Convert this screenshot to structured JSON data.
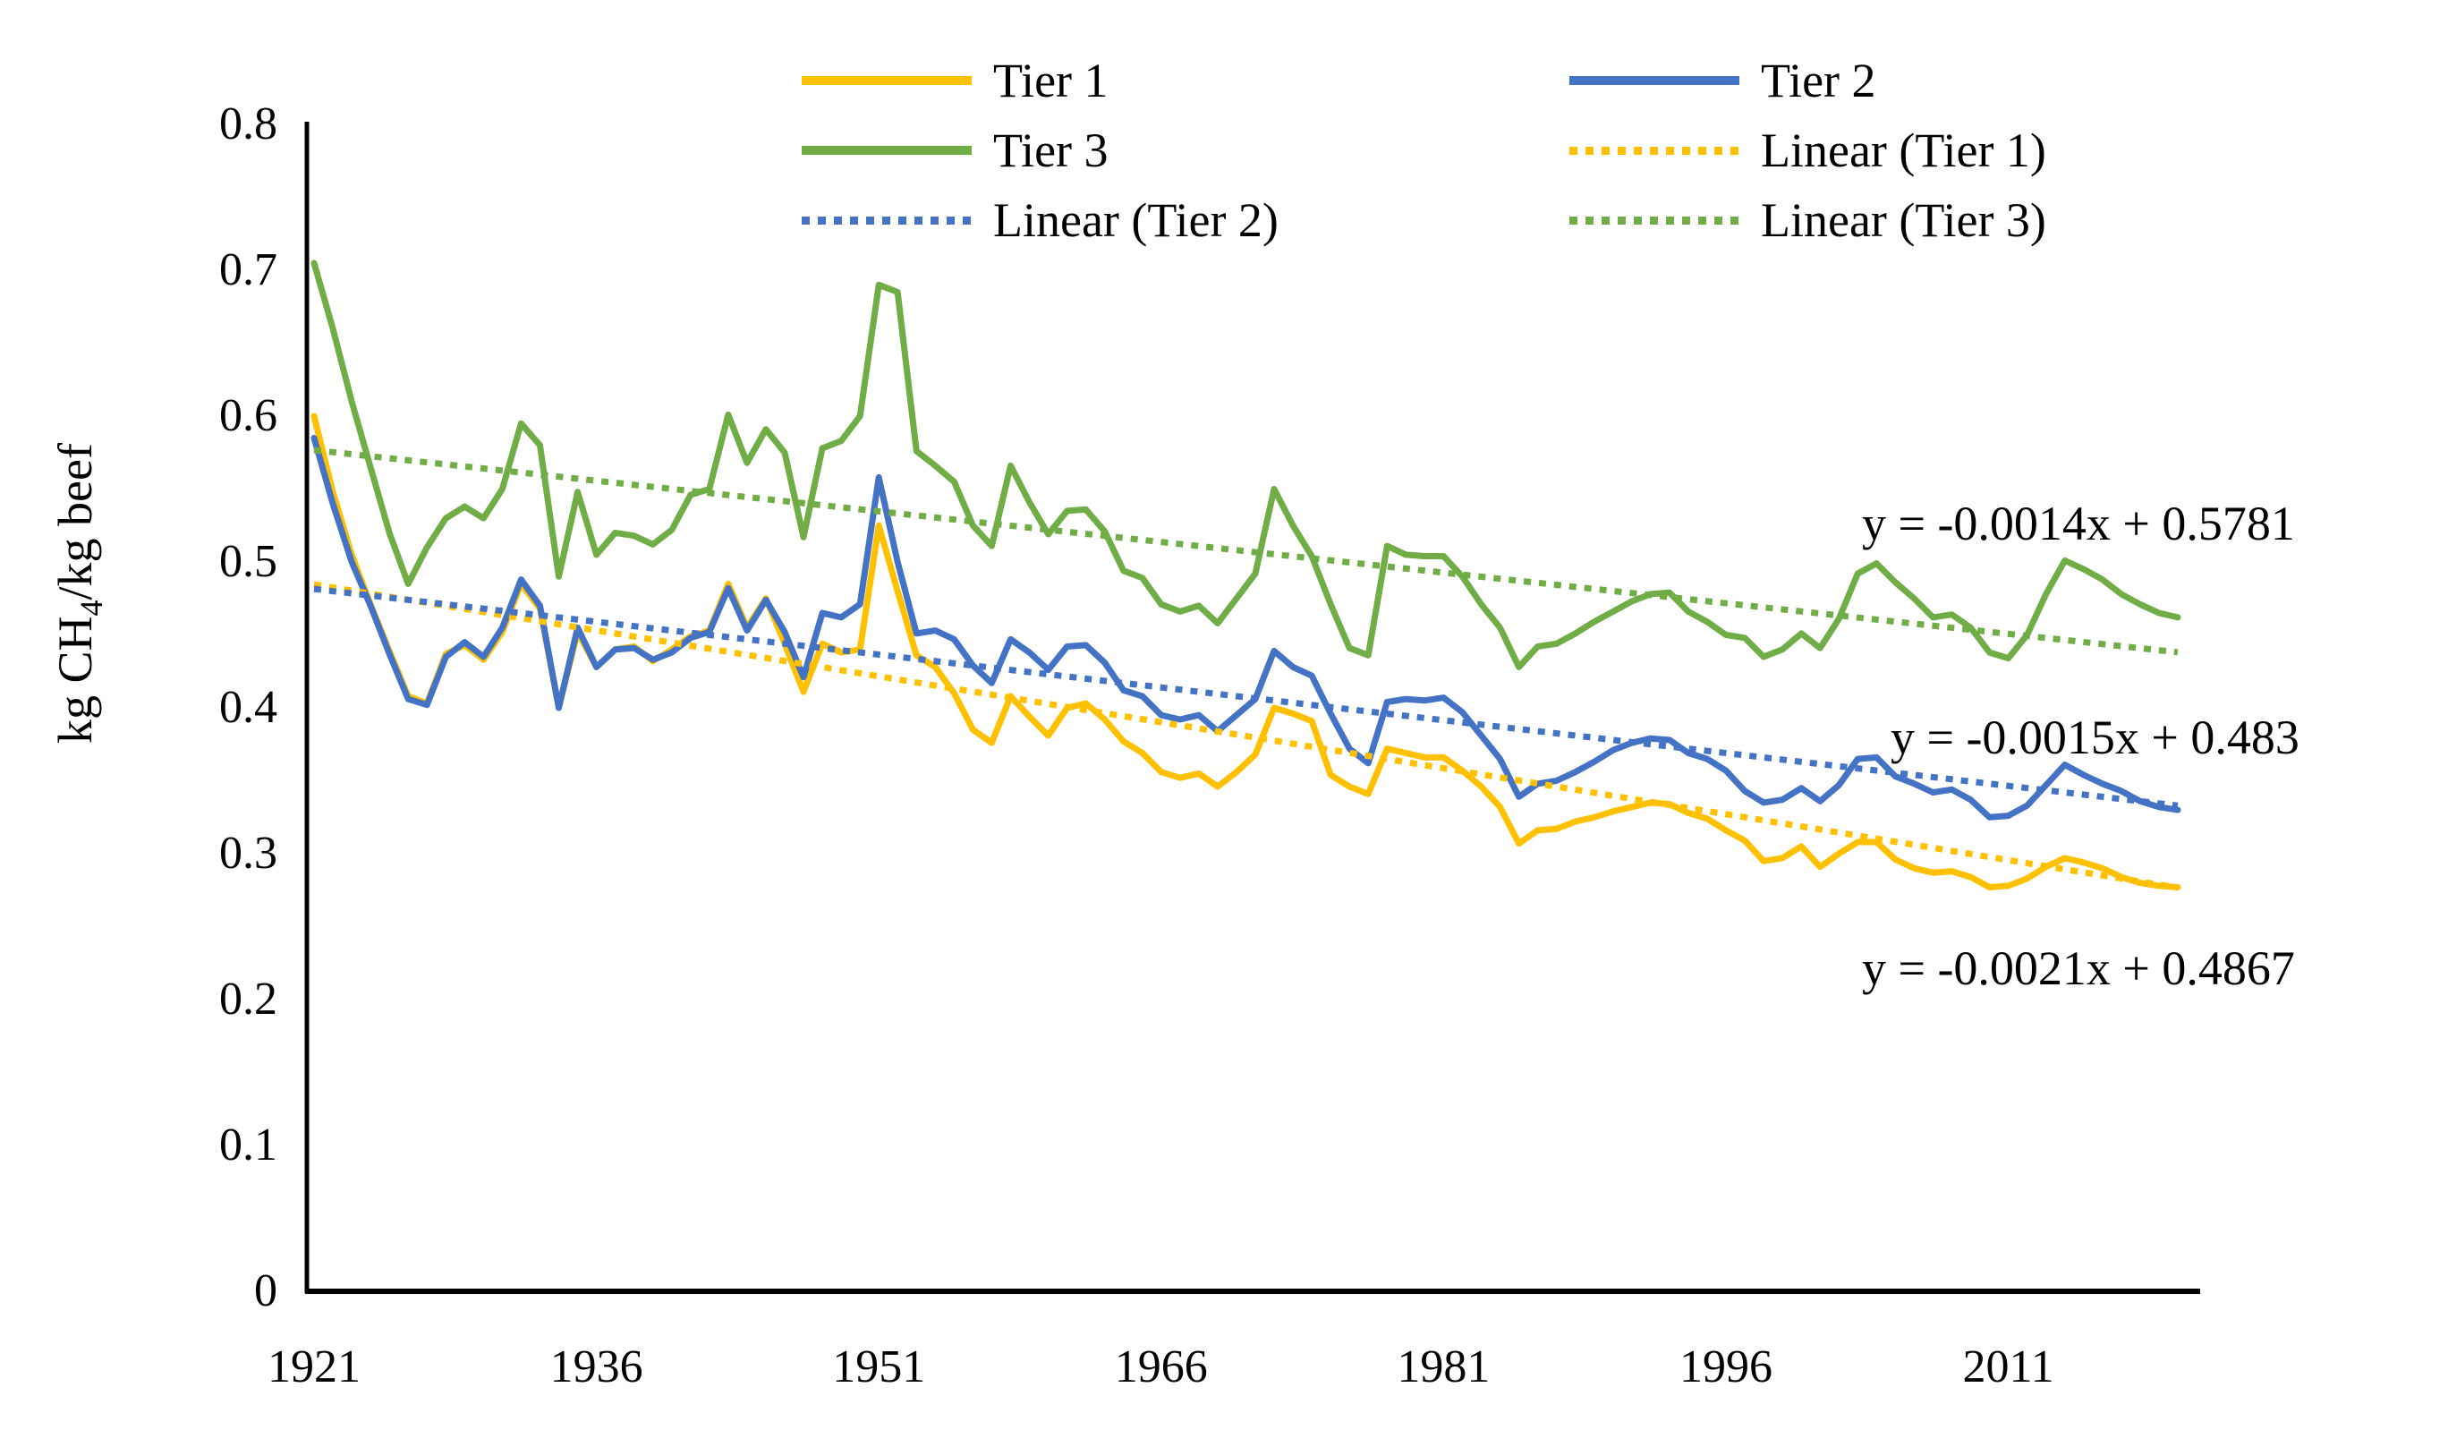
{
  "figure": {
    "ylabel_prefix": "kg CH",
    "ylabel_sub": "4",
    "ylabel_suffix": "/kg beef"
  },
  "legend": [
    {
      "label": "Tier 1",
      "color": "#FFC000",
      "style": "solid"
    },
    {
      "label": "Tier 2",
      "color": "#4472C4",
      "style": "solid"
    },
    {
      "label": "Tier 3",
      "color": "#70AD47",
      "style": "solid"
    },
    {
      "label": "Linear (Tier 1)",
      "color": "#FFC000",
      "style": "dotted"
    },
    {
      "label": "Linear (Tier 2)",
      "color": "#4472C4",
      "style": "dotted"
    },
    {
      "label": "Linear (Tier 3)",
      "color": "#70AD47",
      "style": "dotted"
    }
  ],
  "equations": [
    {
      "text": "y = -0.0014x + 0.5781",
      "series": "Tier 3"
    },
    {
      "text": "y = -0.0015x + 0.483",
      "series": "Tier 2"
    },
    {
      "text": "y = -0.0021x + 0.4867",
      "series": "Tier 1"
    }
  ],
  "chart_data": {
    "type": "line",
    "title": "",
    "xlabel": "",
    "ylabel": "kg CH4/kg beef",
    "ylim": [
      0,
      0.8
    ],
    "x_range": [
      1921,
      2020
    ],
    "grid": false,
    "legend_position": "top",
    "yticks": [
      0,
      0.1,
      0.2,
      0.3,
      0.4,
      0.5,
      0.6,
      0.7,
      0.8
    ],
    "ytick_labels": [
      "0",
      "0.1",
      "0.2",
      "0.3",
      "0.4",
      "0.5",
      "0.6",
      "0.7",
      "0.8"
    ],
    "xticks": [
      1921,
      1936,
      1951,
      1966,
      1981,
      1996,
      2011
    ],
    "x": [
      1921,
      1922,
      1923,
      1924,
      1925,
      1926,
      1927,
      1928,
      1929,
      1930,
      1931,
      1932,
      1933,
      1934,
      1935,
      1936,
      1937,
      1938,
      1939,
      1940,
      1941,
      1942,
      1943,
      1944,
      1945,
      1946,
      1947,
      1948,
      1949,
      1950,
      1951,
      1952,
      1953,
      1954,
      1955,
      1956,
      1957,
      1958,
      1959,
      1960,
      1961,
      1962,
      1963,
      1964,
      1965,
      1966,
      1967,
      1968,
      1969,
      1970,
      1971,
      1972,
      1973,
      1974,
      1975,
      1976,
      1977,
      1978,
      1979,
      1980,
      1981,
      1982,
      1983,
      1984,
      1985,
      1986,
      1987,
      1988,
      1989,
      1990,
      1991,
      1992,
      1993,
      1994,
      1995,
      1996,
      1997,
      1998,
      1999,
      2000,
      2001,
      2002,
      2003,
      2004,
      2005,
      2006,
      2007,
      2008,
      2009,
      2010,
      2011,
      2012,
      2013,
      2014,
      2015,
      2016,
      2017,
      2018,
      2019,
      2020
    ],
    "series": [
      {
        "name": "Tier 1",
        "color": "#FFC000",
        "values": [
          0.6,
          0.548,
          0.505,
          0.471,
          0.439,
          0.408,
          0.403,
          0.437,
          0.443,
          0.433,
          0.452,
          0.485,
          0.468,
          0.4,
          0.452,
          0.428,
          0.44,
          0.442,
          0.432,
          0.44,
          0.449,
          0.453,
          0.485,
          0.455,
          0.475,
          0.444,
          0.411,
          0.444,
          0.438,
          0.44,
          0.525,
          0.48,
          0.436,
          0.428,
          0.41,
          0.385,
          0.376,
          0.408,
          0.394,
          0.381,
          0.4,
          0.403,
          0.392,
          0.377,
          0.369,
          0.356,
          0.352,
          0.355,
          0.346,
          0.356,
          0.368,
          0.4,
          0.396,
          0.391,
          0.354,
          0.346,
          0.341,
          0.372,
          0.369,
          0.366,
          0.366,
          0.357,
          0.346,
          0.332,
          0.307,
          0.316,
          0.317,
          0.322,
          0.325,
          0.329,
          0.332,
          0.335,
          0.334,
          0.328,
          0.324,
          0.316,
          0.309,
          0.295,
          0.297,
          0.305,
          0.291,
          0.3,
          0.308,
          0.308,
          0.296,
          0.29,
          0.287,
          0.288,
          0.284,
          0.277,
          0.278,
          0.283,
          0.291,
          0.297,
          0.294,
          0.29,
          0.284,
          0.28,
          0.278,
          0.277
        ]
      },
      {
        "name": "Tier 2",
        "color": "#4472C4",
        "values": [
          0.585,
          0.54,
          0.5,
          0.47,
          0.437,
          0.406,
          0.402,
          0.435,
          0.445,
          0.435,
          0.455,
          0.488,
          0.47,
          0.4,
          0.455,
          0.428,
          0.44,
          0.441,
          0.433,
          0.438,
          0.448,
          0.452,
          0.482,
          0.453,
          0.474,
          0.452,
          0.421,
          0.465,
          0.462,
          0.471,
          0.558,
          0.5,
          0.451,
          0.453,
          0.447,
          0.429,
          0.417,
          0.447,
          0.438,
          0.426,
          0.442,
          0.443,
          0.431,
          0.412,
          0.408,
          0.395,
          0.392,
          0.395,
          0.384,
          0.395,
          0.406,
          0.439,
          0.428,
          0.422,
          0.396,
          0.372,
          0.362,
          0.404,
          0.406,
          0.405,
          0.407,
          0.397,
          0.381,
          0.365,
          0.339,
          0.348,
          0.35,
          0.356,
          0.363,
          0.371,
          0.376,
          0.379,
          0.378,
          0.369,
          0.365,
          0.357,
          0.343,
          0.335,
          0.337,
          0.345,
          0.336,
          0.347,
          0.365,
          0.366,
          0.353,
          0.348,
          0.342,
          0.344,
          0.337,
          0.325,
          0.326,
          0.333,
          0.347,
          0.361,
          0.354,
          0.348,
          0.343,
          0.336,
          0.332,
          0.33
        ]
      },
      {
        "name": "Tier 3",
        "color": "#70AD47",
        "values": [
          0.705,
          0.66,
          0.61,
          0.565,
          0.52,
          0.485,
          0.51,
          0.53,
          0.538,
          0.53,
          0.55,
          0.595,
          0.58,
          0.49,
          0.548,
          0.505,
          0.52,
          0.518,
          0.512,
          0.522,
          0.546,
          0.55,
          0.601,
          0.568,
          0.591,
          0.575,
          0.517,
          0.578,
          0.583,
          0.6,
          0.69,
          0.685,
          0.576,
          0.566,
          0.555,
          0.525,
          0.511,
          0.566,
          0.541,
          0.519,
          0.535,
          0.536,
          0.521,
          0.494,
          0.489,
          0.471,
          0.466,
          0.47,
          0.458,
          0.475,
          0.492,
          0.55,
          0.525,
          0.504,
          0.471,
          0.441,
          0.436,
          0.511,
          0.505,
          0.504,
          0.504,
          0.49,
          0.471,
          0.455,
          0.428,
          0.442,
          0.444,
          0.451,
          0.459,
          0.466,
          0.473,
          0.478,
          0.479,
          0.466,
          0.459,
          0.45,
          0.448,
          0.435,
          0.44,
          0.451,
          0.441,
          0.461,
          0.492,
          0.499,
          0.486,
          0.475,
          0.462,
          0.464,
          0.455,
          0.438,
          0.434,
          0.45,
          0.478,
          0.501,
          0.495,
          0.488,
          0.478,
          0.471,
          0.465,
          0.462
        ]
      }
    ],
    "trendlines": [
      {
        "name": "Linear (Tier 1)",
        "color": "#FFC000",
        "slope": -0.0021,
        "intercept": 0.4867,
        "equation": "y = -0.0021x + 0.4867"
      },
      {
        "name": "Linear (Tier 2)",
        "color": "#4472C4",
        "slope": -0.0015,
        "intercept": 0.483,
        "equation": "y = -0.0015x + 0.483"
      },
      {
        "name": "Linear (Tier 3)",
        "color": "#70AD47",
        "slope": -0.0014,
        "intercept": 0.5781,
        "equation": "y = -0.0014x + 0.5781"
      }
    ]
  }
}
